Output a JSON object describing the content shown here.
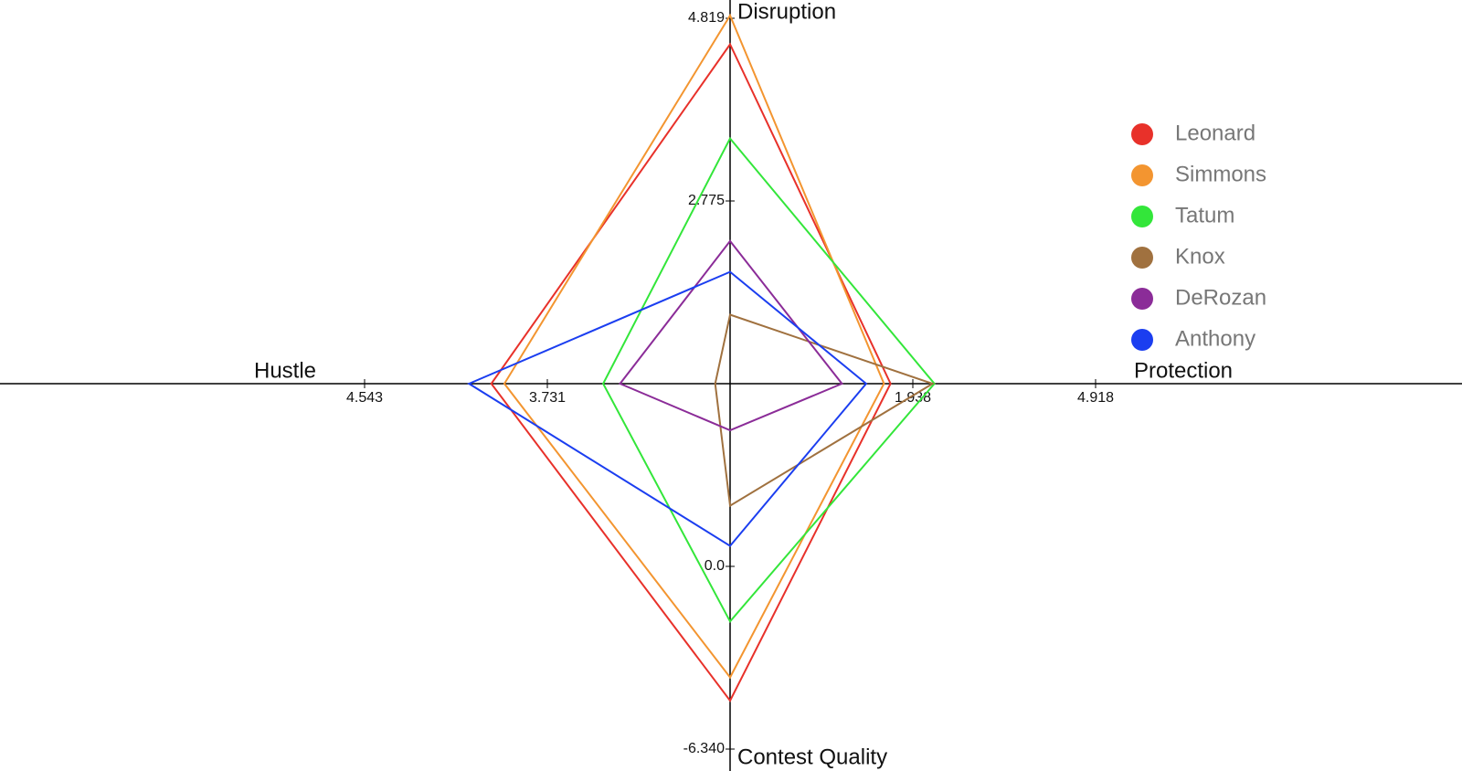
{
  "chart_data": {
    "type": "radar",
    "axes": [
      {
        "name": "Disruption",
        "lim": [
          0.731,
          4.819
        ],
        "ticks": [
          2.775,
          4.819
        ]
      },
      {
        "name": "Protection",
        "lim": [
          -1.042,
          4.918
        ],
        "ticks": [
          1.938,
          4.918
        ]
      },
      {
        "name": "Contest Quality",
        "lim": [
          6.34,
          -6.34
        ],
        "ticks": [
          {
            "value": 0,
            "label": "0.0"
          },
          {
            "value": -6.34,
            "label": "-6.340"
          }
        ]
      },
      {
        "name": "Hustle",
        "lim": [
          2.919,
          4.543
        ],
        "ticks": [
          3.731,
          4.543
        ]
      }
    ],
    "series": [
      {
        "name": "Leonard",
        "color": "#e8312a",
        "values": [
          4.528,
          1.574,
          -4.66,
          3.98
        ]
      },
      {
        "name": "Simmons",
        "color": "#f39530",
        "values": [
          4.85,
          1.467,
          -3.85,
          3.922
        ]
      },
      {
        "name": "Tatum",
        "color": "#33e63a",
        "values": [
          3.474,
          2.289,
          -1.91,
          3.483
        ]
      },
      {
        "name": "Knox",
        "color": "#a0713f",
        "values": [
          1.503,
          2.26,
          2.105,
          2.985
        ]
      },
      {
        "name": "DeRozan",
        "color": "#8b2c98",
        "values": [
          2.326,
          0.782,
          4.72,
          3.408
        ]
      },
      {
        "name": "Anthony",
        "color": "#1b3ef0",
        "values": [
          1.982,
          1.177,
          0.71,
          4.079
        ]
      }
    ]
  }
}
